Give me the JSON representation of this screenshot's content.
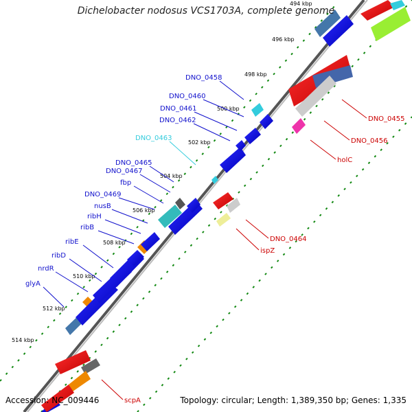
{
  "title": "Dichelobacter nodosus VCS1703A, complete genome",
  "footer": {
    "accession": "Accession: NC_009446",
    "summary": "Topology: circular; Length: 1,389,350 bp; Genes: 1,335"
  },
  "colors": {
    "forward_gene": "#0000ee",
    "reverse_gene": "#ee0000",
    "label_blue": "#1010cc",
    "label_red": "#cc0000",
    "label_cyan": "#33ccdd",
    "tick_green": "#118811"
  },
  "kbp_ticks": [
    {
      "label": "494 kbp"
    },
    {
      "label": "496 kbp"
    },
    {
      "label": "498 kbp"
    },
    {
      "label": "500 kbp"
    },
    {
      "label": "502 kbp"
    },
    {
      "label": "504 kbp"
    },
    {
      "label": "506 kbp"
    },
    {
      "label": "508 kbp"
    },
    {
      "label": "510 kbp"
    },
    {
      "label": "512 kbp"
    },
    {
      "label": "514 kbp"
    }
  ],
  "forward_labels": [
    {
      "text": "DNO_0458",
      "color": "blue"
    },
    {
      "text": "DNO_0460",
      "color": "blue"
    },
    {
      "text": "DNO_0461",
      "color": "blue"
    },
    {
      "text": "DNO_0462",
      "color": "blue"
    },
    {
      "text": "DNO_0463",
      "color": "cyan"
    },
    {
      "text": "DNO_0465",
      "color": "blue"
    },
    {
      "text": "DNO_0467",
      "color": "blue"
    },
    {
      "text": "fbp",
      "color": "blue"
    },
    {
      "text": "DNO_0469",
      "color": "blue"
    },
    {
      "text": "nusB",
      "color": "blue"
    },
    {
      "text": "ribH",
      "color": "blue"
    },
    {
      "text": "ribB",
      "color": "blue"
    },
    {
      "text": "ribE",
      "color": "blue"
    },
    {
      "text": "ribD",
      "color": "blue"
    },
    {
      "text": "nrdR",
      "color": "blue"
    },
    {
      "text": "glyA",
      "color": "blue"
    }
  ],
  "reverse_labels": [
    {
      "text": "DNO_0455"
    },
    {
      "text": "DNO_0456"
    },
    {
      "text": "holC"
    },
    {
      "text": "DNO_0464"
    },
    {
      "text": "ispZ"
    },
    {
      "text": "scpA"
    }
  ]
}
